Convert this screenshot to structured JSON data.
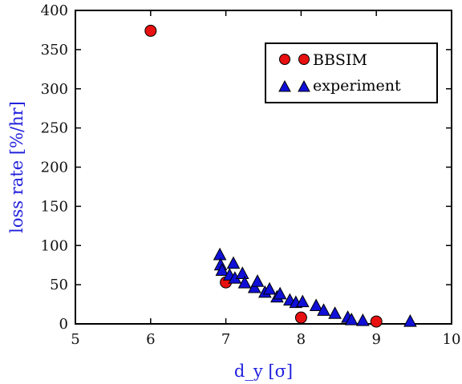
{
  "chart_data": {
    "type": "scatter",
    "xlabel": "d_y [σ]",
    "ylabel": "loss rate [%/hr]",
    "xlim": [
      5,
      10
    ],
    "ylim": [
      0,
      400
    ],
    "x_ticks": [
      5,
      6,
      7,
      8,
      9,
      10
    ],
    "y_ticks": [
      0,
      50,
      100,
      150,
      200,
      250,
      300,
      350,
      400
    ],
    "grid": false,
    "legend": "top-right",
    "series": [
      {
        "name": "BBSIM",
        "marker": "circle",
        "color": "#e81010",
        "points": [
          [
            6.0,
            374
          ],
          [
            7.0,
            53
          ],
          [
            8.0,
            8
          ],
          [
            9.0,
            3
          ]
        ]
      },
      {
        "name": "experiment",
        "marker": "triangle",
        "color": "#1010d8",
        "points": [
          [
            6.92,
            88
          ],
          [
            6.93,
            75
          ],
          [
            6.95,
            68
          ],
          [
            7.05,
            62
          ],
          [
            7.1,
            77
          ],
          [
            7.12,
            58
          ],
          [
            7.22,
            64
          ],
          [
            7.25,
            52
          ],
          [
            7.38,
            46
          ],
          [
            7.42,
            54
          ],
          [
            7.52,
            40
          ],
          [
            7.58,
            44
          ],
          [
            7.68,
            34
          ],
          [
            7.72,
            38
          ],
          [
            7.85,
            30
          ],
          [
            7.93,
            27
          ],
          [
            8.02,
            28
          ],
          [
            8.2,
            23
          ],
          [
            8.3,
            17
          ],
          [
            8.45,
            13
          ],
          [
            8.62,
            8
          ],
          [
            8.67,
            5
          ],
          [
            8.82,
            4
          ],
          [
            9.45,
            3
          ]
        ]
      }
    ]
  },
  "colors": {
    "axis_label": "#2222dd",
    "frame": "#000000"
  }
}
